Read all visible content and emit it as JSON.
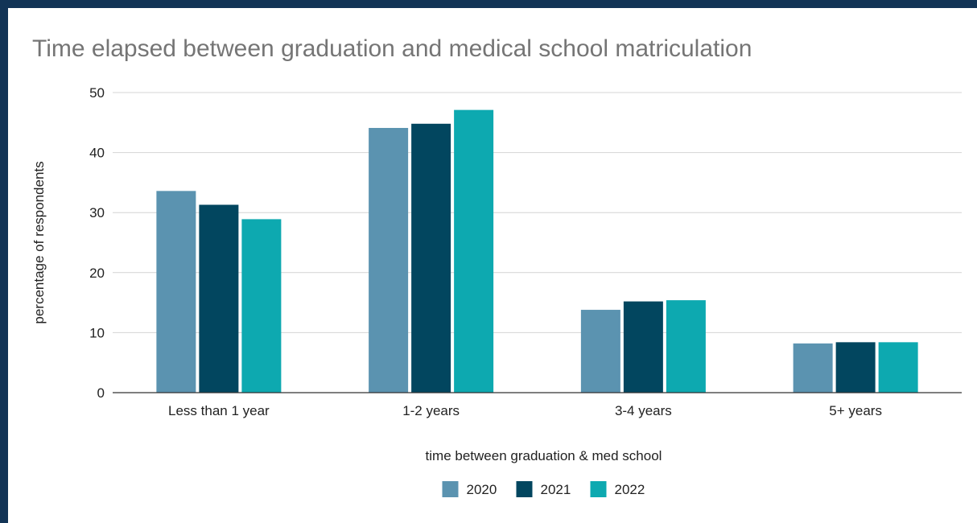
{
  "chart_data": {
    "type": "bar",
    "title": "Time elapsed between graduation and medical school matriculation",
    "xlabel": "time between graduation & med school",
    "ylabel": "percentage of respondents",
    "categories": [
      "Less than 1 year",
      "1-2 years",
      "3-4 years",
      "5+ years"
    ],
    "series": [
      {
        "name": "2020",
        "color": "#5b93b0",
        "values": [
          33.6,
          44.1,
          13.8,
          8.2
        ]
      },
      {
        "name": "2021",
        "color": "#02465f",
        "values": [
          31.3,
          44.8,
          15.2,
          8.4
        ]
      },
      {
        "name": "2022",
        "color": "#0da9b0",
        "values": [
          28.9,
          47.1,
          15.4,
          8.4
        ]
      }
    ],
    "ylim": [
      0,
      50
    ],
    "yticks": [
      "0",
      "10",
      "20",
      "30",
      "40",
      "50"
    ],
    "grid": true,
    "legend_position": "bottom"
  }
}
